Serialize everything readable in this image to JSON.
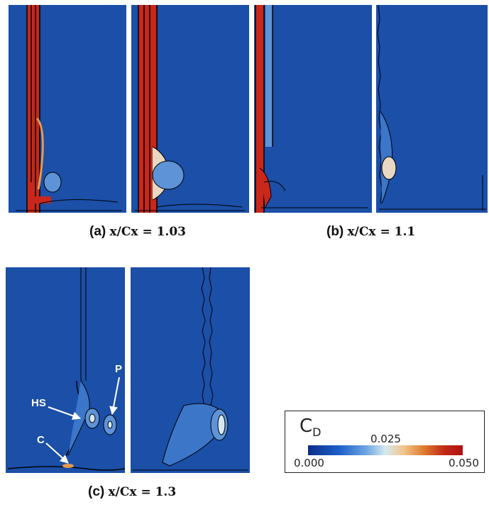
{
  "captions": {
    "a": {
      "label": "(a)",
      "eq": "x/Cx = 1.03"
    },
    "b": {
      "label": "(b)",
      "eq": "x/Cx = 1.1"
    },
    "c": {
      "label": "(c)",
      "eq": "x/Cx = 1.3"
    }
  },
  "annotations": {
    "hs": "HS",
    "p": "P",
    "c": "C"
  },
  "colorbar": {
    "title": "C",
    "subscript": "D",
    "min": "0.000",
    "mid": "0.025",
    "max": "0.050"
  },
  "colors": {
    "background": "#1b4fa8",
    "low": "#0b2d8a",
    "high": "#c22a17"
  }
}
